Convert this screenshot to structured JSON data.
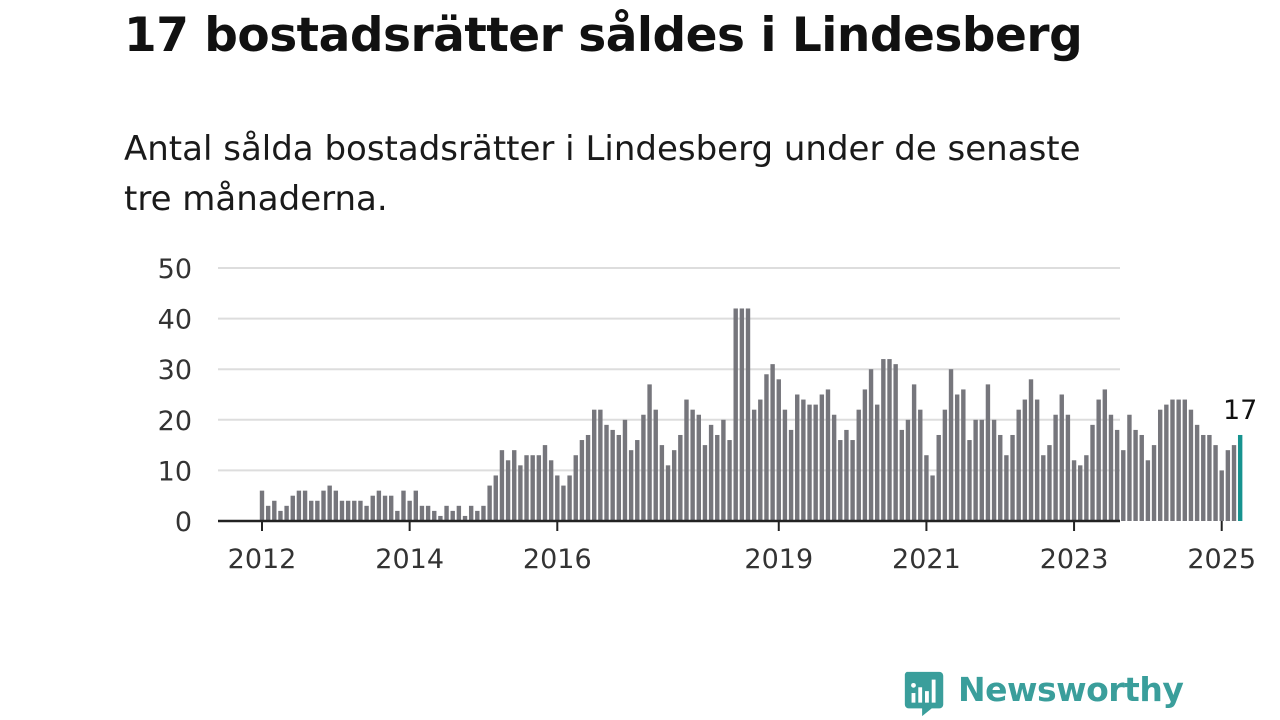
{
  "headline": "17 bostadsrätter såldes i Lindesberg",
  "subtitle": "Antal sålda bostadsrätter i Lindesberg under de senaste tre månaderna.",
  "brand": {
    "name": "Newsworthy",
    "color": "#3a9e9b"
  },
  "colors": {
    "bar": "#76767c",
    "highlight": "#16938f",
    "grid": "#dddddd",
    "axis": "#222222"
  },
  "chart_data": {
    "type": "bar",
    "title": "",
    "xlabel": "",
    "ylabel": "",
    "ylim": [
      0,
      50
    ],
    "yticks": [
      0,
      10,
      20,
      30,
      40,
      50
    ],
    "grid": true,
    "start": "2012-01",
    "frequency": "monthly",
    "xtick_labels": [
      "2012",
      "2014",
      "2016",
      "2019",
      "2021",
      "2023",
      "2025"
    ],
    "highlight_label": "17",
    "values": [
      6,
      3,
      4,
      2,
      3,
      5,
      6,
      6,
      4,
      4,
      6,
      7,
      6,
      4,
      4,
      4,
      4,
      3,
      5,
      6,
      5,
      5,
      2,
      6,
      4,
      6,
      3,
      3,
      2,
      1,
      3,
      2,
      3,
      1,
      3,
      2,
      3,
      7,
      9,
      14,
      12,
      14,
      11,
      13,
      13,
      13,
      15,
      12,
      9,
      7,
      9,
      13,
      16,
      17,
      22,
      22,
      19,
      18,
      17,
      20,
      14,
      16,
      21,
      27,
      22,
      15,
      11,
      14,
      17,
      24,
      22,
      21,
      15,
      19,
      17,
      20,
      16,
      42,
      42,
      42,
      22,
      24,
      29,
      31,
      28,
      22,
      18,
      25,
      24,
      23,
      23,
      25,
      26,
      21,
      16,
      18,
      16,
      22,
      26,
      30,
      23,
      32,
      32,
      31,
      18,
      20,
      27,
      22,
      13,
      9,
      17,
      22,
      30,
      25,
      26,
      16,
      20,
      20,
      27,
      20,
      17,
      13,
      17,
      22,
      24,
      28,
      24,
      13,
      15,
      21,
      25,
      21,
      12,
      11,
      13,
      19,
      24,
      26,
      21,
      18,
      14,
      21,
      18,
      17,
      12,
      15,
      22,
      23,
      24,
      24,
      24,
      22,
      19,
      17,
      17,
      15,
      10,
      14,
      15,
      17
    ]
  }
}
